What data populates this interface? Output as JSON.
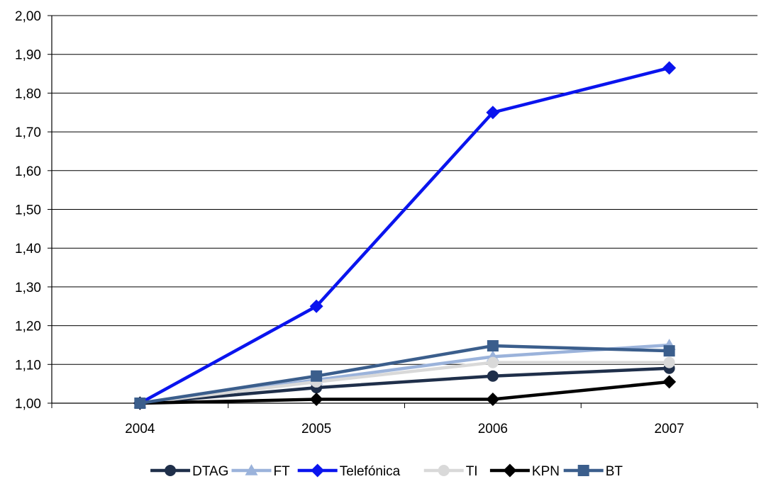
{
  "chart_data": {
    "type": "line",
    "title": "",
    "xlabel": "",
    "ylabel": "",
    "categories": [
      "2004",
      "2005",
      "2006",
      "2007"
    ],
    "ylim": [
      1.0,
      2.0
    ],
    "y_ticks": [
      1.0,
      1.1,
      1.2,
      1.3,
      1.4,
      1.5,
      1.6,
      1.7,
      1.8,
      1.9,
      2.0
    ],
    "y_tick_labels": [
      "1,00",
      "1,10",
      "1,20",
      "1,30",
      "1,40",
      "1,50",
      "1,60",
      "1,70",
      "1,80",
      "1,90",
      "2,00"
    ],
    "grid": true,
    "legend_position": "bottom",
    "series": [
      {
        "name": "DTAG",
        "values": [
          1.0,
          1.04,
          1.07,
          1.09
        ],
        "color": "#1f2f4a",
        "marker": "circle"
      },
      {
        "name": "FT",
        "values": [
          1.0,
          1.06,
          1.12,
          1.15
        ],
        "color": "#9bb3db",
        "marker": "triangle"
      },
      {
        "name": "Telefónica",
        "values": [
          1.0,
          1.25,
          1.75,
          1.865
        ],
        "color": "#0a14ee",
        "marker": "diamond"
      },
      {
        "name": "TI",
        "values": [
          1.0,
          1.055,
          1.105,
          1.105
        ],
        "color": "#d9d9d9",
        "marker": "circle"
      },
      {
        "name": "KPN",
        "values": [
          1.0,
          1.01,
          1.01,
          1.055
        ],
        "color": "#000000",
        "marker": "diamond"
      },
      {
        "name": "BT",
        "values": [
          1.0,
          1.07,
          1.148,
          1.135
        ],
        "color": "#3b5e8c",
        "marker": "square"
      }
    ]
  }
}
